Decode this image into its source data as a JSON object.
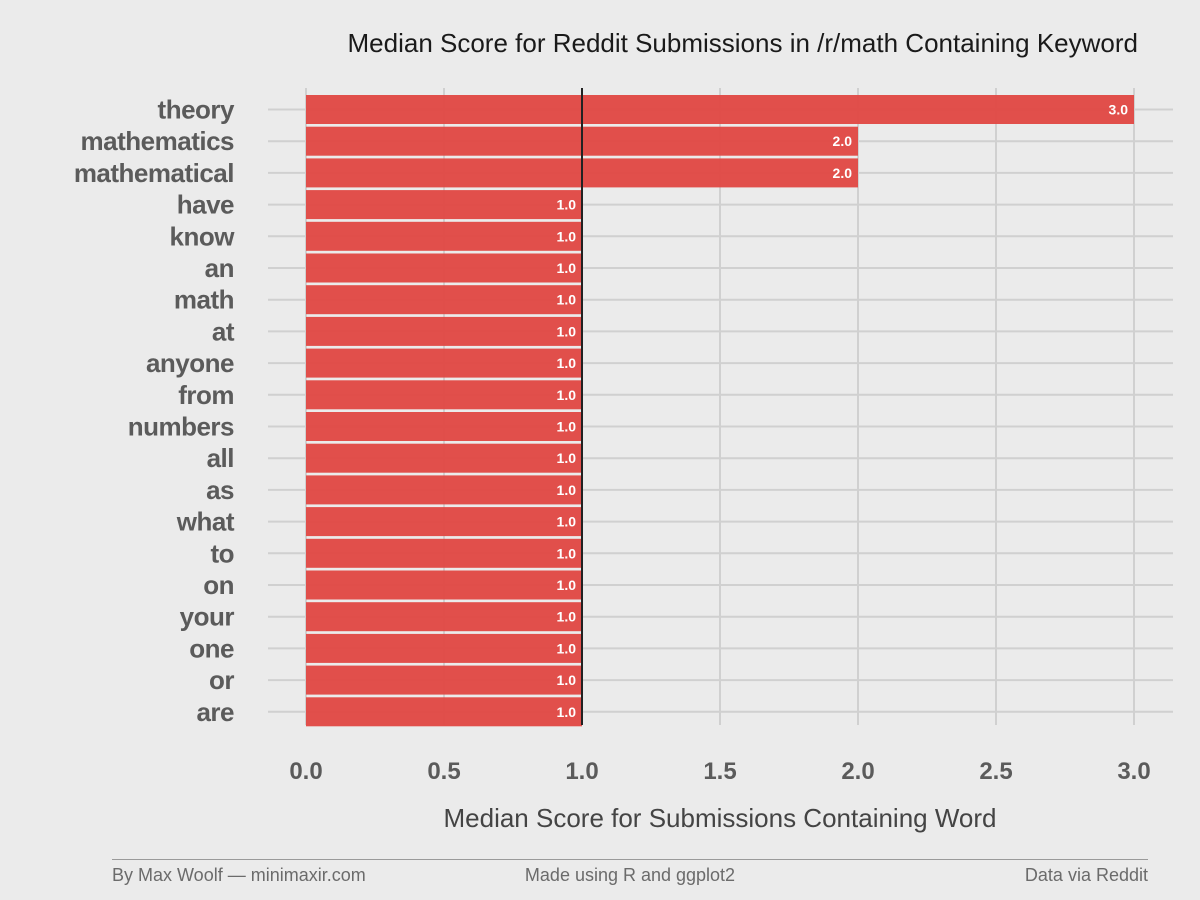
{
  "chart_data": {
    "type": "bar",
    "orientation": "horizontal",
    "title": "Median Score for Reddit Submissions in /r/math Containing Keyword",
    "xlabel": "Median Score for Submissions Containing Word",
    "ylabel": "",
    "categories": [
      "theory",
      "mathematics",
      "mathematical",
      "have",
      "know",
      "an",
      "math",
      "at",
      "anyone",
      "from",
      "numbers",
      "all",
      "as",
      "what",
      "to",
      "on",
      "your",
      "one",
      "or",
      "are"
    ],
    "values": [
      3,
      2,
      2,
      1,
      1,
      1,
      1,
      1,
      1,
      1,
      1,
      1,
      1,
      1,
      1,
      1,
      1,
      1,
      1,
      1
    ],
    "value_labels": [
      "3.0",
      "2.0",
      "2.0",
      "1.0",
      "1.0",
      "1.0",
      "1.0",
      "1.0",
      "1.0",
      "1.0",
      "1.0",
      "1.0",
      "1.0",
      "1.0",
      "1.0",
      "1.0",
      "1.0",
      "1.0",
      "1.0",
      "1.0"
    ],
    "xlim": [
      0,
      3
    ],
    "xticks": [
      "0.0",
      "0.5",
      "1.0",
      "1.5",
      "2.0",
      "2.5",
      "3.0"
    ],
    "reference_line": 1,
    "grid": true,
    "colors": {
      "bar": "#e04b47",
      "background": "#ebebeb",
      "grid": "#d0d0d0",
      "reference_line": "#222222"
    }
  },
  "footer": {
    "left": "By Max Woolf — minimaxir.com",
    "center": "Made using R and ggplot2",
    "right": "Data via Reddit"
  }
}
